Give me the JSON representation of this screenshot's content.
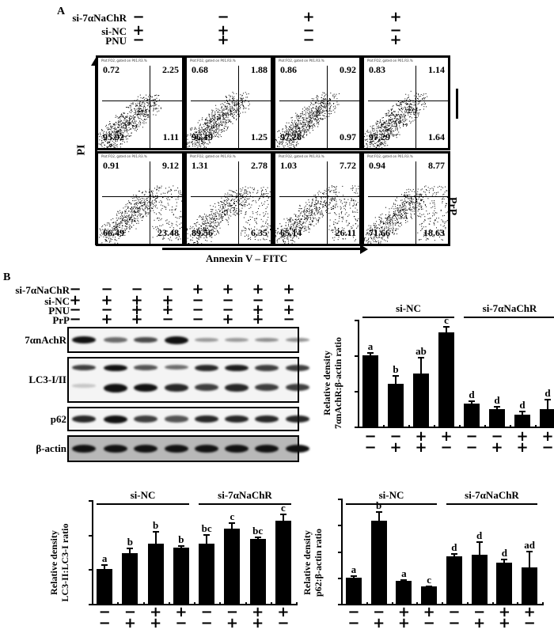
{
  "panel_A": {
    "label": "A",
    "conditions": [
      {
        "name": "si-7αNaChR",
        "values": [
          "−",
          "−",
          "+",
          "+"
        ]
      },
      {
        "name": "si-NC",
        "values": [
          "+",
          "+",
          "−",
          "−"
        ]
      },
      {
        "name": "PNU",
        "values": [
          "−",
          "+",
          "−",
          "+"
        ]
      }
    ],
    "y_axis_label": "PI",
    "x_axis_label": "Annexin V – FITC",
    "row_labels": [
      "",
      "PrP"
    ],
    "plot_header": "Plot:FO2, gated on P01.R3.%",
    "quadrant_rows": [
      [
        {
          "ul": "0.72",
          "ur": "2.25",
          "ll": "95.92",
          "lr": "1.11"
        },
        {
          "ul": "0.68",
          "ur": "1.88",
          "ll": "96.19",
          "lr": "1.25"
        },
        {
          "ul": "0.86",
          "ur": "0.92",
          "ll": "97.28",
          "lr": "0.97"
        },
        {
          "ul": "0.83",
          "ur": "1.14",
          "ll": "97.29",
          "lr": "1.64"
        }
      ],
      [
        {
          "ul": "0.91",
          "ur": "9.12",
          "ll": "66.49",
          "lr": "23.48"
        },
        {
          "ul": "1.31",
          "ur": "2.78",
          "ll": "89.56",
          "lr": "6.35"
        },
        {
          "ul": "1.03",
          "ur": "7.72",
          "ll": "65.14",
          "lr": "26.11"
        },
        {
          "ul": "0.94",
          "ur": "8.77",
          "ll": "71.66",
          "lr": "18.63"
        }
      ]
    ]
  },
  "panel_B": {
    "label": "B",
    "conditions": [
      {
        "name": "si-7αNaChR",
        "values": [
          "−",
          "−",
          "−",
          "−",
          "+",
          "+",
          "+",
          "+"
        ]
      },
      {
        "name": "si-NC",
        "values": [
          "+",
          "+",
          "+",
          "+",
          "−",
          "−",
          "−",
          "−"
        ]
      },
      {
        "name": "PNU",
        "values": [
          "−",
          "−",
          "+",
          "+",
          "−",
          "−",
          "+",
          "+"
        ]
      },
      {
        "name": "PrP",
        "values": [
          "−",
          "+",
          "+",
          "−",
          "−",
          "+",
          "+",
          "−"
        ]
      }
    ],
    "blots": [
      "7αnAchR",
      "LC3-I/II",
      "p62",
      "β-actin"
    ]
  },
  "chart_data": [
    {
      "type": "bar",
      "title": "",
      "ylabel": "Relative density 7αnAchR:β-actin ratio",
      "xlabel": "",
      "ylim": [
        0,
        1.5
      ],
      "yticks": [
        "0",
        "0.5",
        "1",
        "1.5"
      ],
      "groups": [
        "si-NC",
        "si-7αNaChR"
      ],
      "x_conditions": {
        "PNU": [
          "−",
          "−",
          "+",
          "+",
          "−",
          "−",
          "+",
          "+"
        ],
        "PrP": [
          "−",
          "+",
          "+",
          "−",
          "−",
          "+",
          "+",
          "−"
        ]
      },
      "values": [
        1.0,
        0.6,
        0.74,
        1.32,
        0.32,
        0.24,
        0.17,
        0.24
      ],
      "errors": [
        0.05,
        0.12,
        0.24,
        0.09,
        0.05,
        0.05,
        0.05,
        0.15
      ],
      "letters": [
        "a",
        "b",
        "ab",
        "c",
        "d",
        "d",
        "d",
        "d"
      ]
    },
    {
      "type": "bar",
      "title": "",
      "ylabel": "Relative density LC3-II:LC3-I ratio",
      "xlabel": "",
      "ylim": [
        0,
        3
      ],
      "yticks": [
        "0",
        "1",
        "2",
        "3"
      ],
      "groups": [
        "si-NC",
        "si-7αNaChR"
      ],
      "x_conditions": {
        "PNU": [
          "−",
          "−",
          "+",
          "+",
          "−",
          "−",
          "+",
          "+"
        ],
        "PrP": [
          "−",
          "+",
          "+",
          "−",
          "−",
          "+",
          "+",
          "−"
        ]
      },
      "values": [
        1.0,
        1.47,
        1.75,
        1.62,
        1.75,
        2.17,
        1.87,
        2.4
      ],
      "errors": [
        0.15,
        0.15,
        0.35,
        0.08,
        0.27,
        0.18,
        0.08,
        0.22
      ],
      "letters": [
        "a",
        "b",
        "b",
        "b",
        "bc",
        "c",
        "bc",
        "c"
      ]
    },
    {
      "type": "bar",
      "title": "",
      "ylabel": "Relative density p62:β-actin ratio",
      "xlabel": "",
      "ylim": [
        0,
        4
      ],
      "yticks": [
        "0",
        "1",
        "2",
        "3",
        "4"
      ],
      "groups": [
        "si-NC",
        "si-7αNaChR"
      ],
      "x_conditions": {
        "PNU": [
          "−",
          "−",
          "+",
          "+",
          "−",
          "−",
          "+",
          "+"
        ],
        "PrP": [
          "−",
          "+",
          "+",
          "−",
          "−",
          "+",
          "+",
          "−"
        ]
      },
      "values": [
        1.0,
        3.17,
        0.87,
        0.65,
        1.8,
        1.87,
        1.55,
        1.37
      ],
      "errors": [
        0.08,
        0.35,
        0.07,
        0.05,
        0.12,
        0.5,
        0.17,
        0.65
      ],
      "letters": [
        "a",
        "b",
        "a",
        "c",
        "d",
        "d",
        "d",
        "ad"
      ]
    }
  ]
}
